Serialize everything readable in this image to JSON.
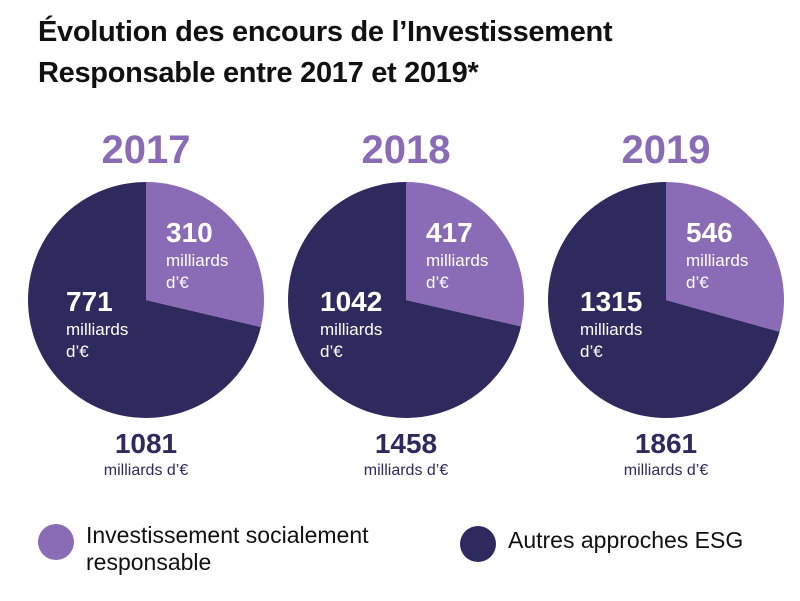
{
  "title": {
    "line1": "Évolution des encours de l’Investissement",
    "line2": "Responsable entre 2017 et 2019*"
  },
  "colors": {
    "isr": "#8a6bb5",
    "other": "#2f2a5e",
    "year": "#8a6bb5"
  },
  "unit_short": "milliards",
  "unit_euro": "d’€",
  "chart_data": [
    {
      "type": "pie",
      "title": "2017",
      "slices": [
        {
          "label": "Investissement socialement responsable",
          "value": 310
        },
        {
          "label": "Autres approches ESG",
          "value": 771
        }
      ],
      "total": 1081,
      "total_unit": "milliards d’€"
    },
    {
      "type": "pie",
      "title": "2018",
      "slices": [
        {
          "label": "Investissement socialement responsable",
          "value": 417
        },
        {
          "label": "Autres approches ESG",
          "value": 1042
        }
      ],
      "total": 1458,
      "total_unit": "milliards d’€"
    },
    {
      "type": "pie",
      "title": "2019",
      "slices": [
        {
          "label": "Investissement socialement responsable",
          "value": 546
        },
        {
          "label": "Autres approches ESG",
          "value": 1315
        }
      ],
      "total": 1861,
      "total_unit": "milliards d’€"
    }
  ],
  "legend": [
    {
      "line1": "Investissement socialement",
      "line2": "responsable"
    },
    {
      "line1": "Autres approches ESG",
      "line2": ""
    }
  ]
}
